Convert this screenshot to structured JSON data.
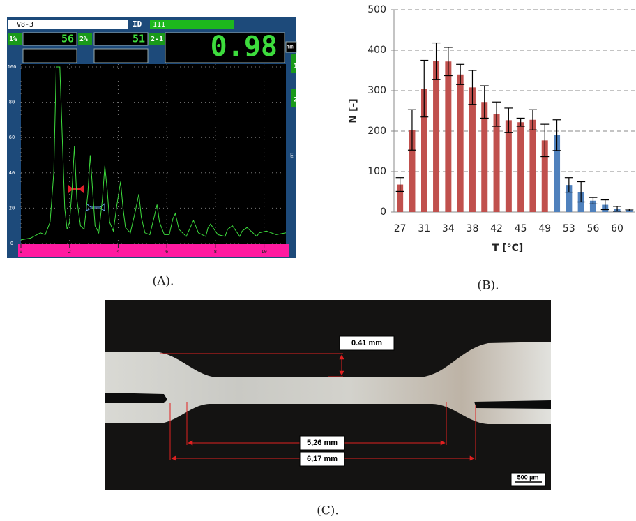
{
  "chart_data": [
    {
      "type": "line",
      "x": [
        0,
        0.4,
        0.8,
        1.0,
        1.2,
        1.35,
        1.45,
        1.5,
        1.55,
        1.6,
        1.7,
        1.8,
        1.9,
        2.0,
        2.1,
        2.2,
        2.3,
        2.45,
        2.6,
        2.75,
        2.85,
        2.95,
        3.05,
        3.2,
        3.35,
        3.45,
        3.55,
        3.65,
        3.8,
        3.95,
        4.1,
        4.2,
        4.3,
        4.5,
        4.7,
        4.85,
        4.95,
        5.1,
        5.3,
        5.5,
        5.6,
        5.7,
        5.9,
        6.1,
        6.25,
        6.35,
        6.5,
        6.8,
        7.0,
        7.1,
        7.3,
        7.6,
        7.7,
        7.8,
        8.1,
        8.4,
        8.5,
        8.7,
        9.0,
        9.1,
        9.3,
        9.7,
        9.8,
        10.1,
        10.5,
        10.9
      ],
      "values": [
        2,
        3,
        6,
        5,
        12,
        40,
        100,
        100,
        100,
        100,
        60,
        20,
        8,
        12,
        30,
        55,
        25,
        10,
        8,
        28,
        50,
        30,
        10,
        6,
        25,
        44,
        30,
        12,
        7,
        22,
        35,
        20,
        9,
        6,
        18,
        28,
        15,
        6,
        5,
        16,
        22,
        12,
        5,
        5,
        14,
        17,
        8,
        4,
        10,
        13,
        6,
        4,
        9,
        11,
        5,
        4,
        8,
        10,
        4,
        7,
        9,
        4,
        6,
        7,
        5,
        6
      ],
      "color": "#3ddc3d",
      "xlim": [
        0,
        10.9
      ],
      "ylim": [
        0,
        100
      ],
      "xticks": [
        0,
        2,
        4,
        6,
        8,
        10
      ],
      "yticks": [
        0,
        20,
        40,
        60,
        80,
        100
      ],
      "grid": true
    },
    {
      "type": "bar",
      "xlabel": "T [°C]",
      "ylabel": "N [-]",
      "categories": [
        "27",
        null,
        "31",
        null,
        "34",
        null,
        "38",
        null,
        "42",
        null,
        "45",
        null,
        "49",
        null,
        "53",
        null,
        "56",
        null,
        "60",
        null
      ],
      "values": [
        68,
        203,
        305,
        373,
        372,
        340,
        308,
        272,
        242,
        227,
        222,
        228,
        177,
        190,
        67,
        50,
        28,
        18,
        8,
        5
      ],
      "errors": [
        17,
        50,
        70,
        45,
        35,
        25,
        42,
        40,
        30,
        30,
        10,
        25,
        40,
        38,
        18,
        25,
        8,
        12,
        6,
        2
      ],
      "colors": [
        "#c0504d",
        "#c0504d",
        "#c0504d",
        "#c0504d",
        "#c0504d",
        "#c0504d",
        "#c0504d",
        "#c0504d",
        "#c0504d",
        "#c0504d",
        "#c0504d",
        "#c0504d",
        "#c0504d",
        "#4f81bd",
        "#4f81bd",
        "#4f81bd",
        "#4f81bd",
        "#4f81bd",
        "#4f81bd",
        "#4f81bd"
      ],
      "ylim": [
        0,
        500
      ],
      "yticks": [
        0,
        100,
        200,
        300,
        400,
        500
      ],
      "grid": true
    }
  ],
  "panel_a": {
    "file_name": "V8-3",
    "id_label": "ID",
    "id_value": "111",
    "gate1_label": "1%",
    "gate1_value": 56,
    "gate2_label": "2%",
    "gate2_value": 51,
    "diff_label": "2-1",
    "reading": 0.98,
    "unit": "mm",
    "mode": "E-E",
    "icon1": "1",
    "icon2": "2"
  },
  "micrograph": {
    "thickness": "0.41 mm",
    "inner_length": "5,26 mm",
    "outer_length": "6,17 mm",
    "scale_bar": "500 µm"
  },
  "captions": [
    "(A).",
    "(B).",
    "(C)."
  ]
}
